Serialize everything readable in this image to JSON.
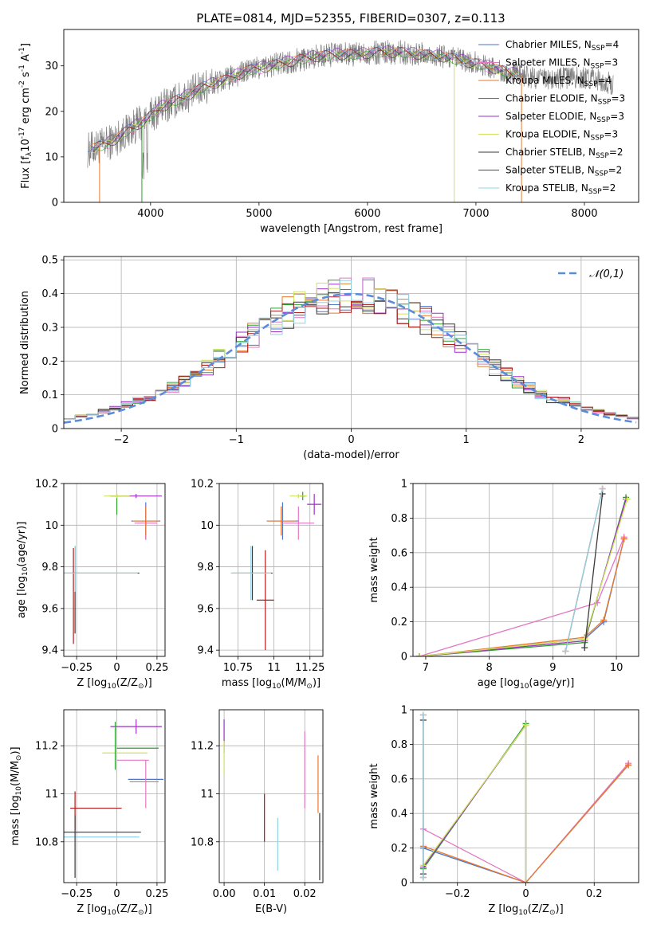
{
  "figure": {
    "title": "PLATE=0814, MJD=52355, FIBERID=0307, z=0.113"
  },
  "legend_items": [
    {
      "label": "Chabrier MILES, N$_{SSP}$=4",
      "color": "#4a76c8"
    },
    {
      "label": "Salpeter MILES, N$_{SSP}$=3",
      "color": "#e377c2"
    },
    {
      "label": "Kroupa MILES, N$_{SSP}$=4",
      "color": "#e9782c"
    },
    {
      "label": "Chabrier ELODIE, N$_{SSP}$=3",
      "color": "#2ca02c"
    },
    {
      "label": "Salpeter ELODIE, N$_{SSP}$=3",
      "color": "#9b30c5"
    },
    {
      "label": "Kroupa ELODIE, N$_{SSP}$=3",
      "color": "#cde35b"
    },
    {
      "label": "Chabrier STELIB, N$_{SSP}$=2",
      "color": "#3a3a3a"
    },
    {
      "label": "Salpeter STELIB, N$_{SSP}$=2",
      "color": "#b01b1b"
    },
    {
      "label": "Kroupa STELIB, N$_{SSP}$=2",
      "color": "#8fd4e4"
    }
  ],
  "chart_data": [
    {
      "type": "line",
      "title": "PLATE=0814, MJD=52355, FIBERID=0307, z=0.113",
      "xlabel": "wavelength [Angstrom, rest frame]",
      "ylabel": "Flux [f$_\\lambda$10$^{-17}$ erg cm$^{-2}$ s$^{-1}$ A$^{-1}$]",
      "xlim": [
        3200,
        8500
      ],
      "ylim": [
        0,
        38
      ],
      "xticks": [
        4000,
        5000,
        6000,
        7000,
        8000
      ],
      "yticks": [
        0,
        10,
        20,
        30
      ],
      "grid": false,
      "legend_position": "right",
      "data_spectrum_color": "#808080",
      "continuum_anchor": {
        "x": [
          3420,
          3550,
          3650,
          3800,
          3950,
          4100,
          4300,
          4500,
          4700,
          4900,
          5100,
          5300,
          5500,
          5700,
          5900,
          6100,
          6300,
          6500,
          6700,
          6900,
          7100,
          7300,
          7500,
          7700,
          7900,
          8100,
          8270
        ],
        "y": [
          11.5,
          12.5,
          13.5,
          16,
          18,
          21,
          23,
          25.5,
          27,
          29,
          30,
          31,
          32,
          32.5,
          32.5,
          33,
          33,
          32.5,
          32,
          31,
          30,
          28.5,
          27.5,
          27,
          27.5,
          27,
          26
        ]
      },
      "model_dropouts": [
        {
          "x": 3530,
          "series": "Kroupa MILES"
        },
        {
          "x": 3920,
          "series": "Chabrier ELODIE"
        },
        {
          "x": 6800,
          "series": "Kroupa ELODIE"
        },
        {
          "x": 7420,
          "series": "Kroupa MILES"
        }
      ]
    },
    {
      "type": "histogram",
      "xlabel": "(data-model)/error",
      "ylabel": "Normed distribution",
      "xlim": [
        -2.5,
        2.5
      ],
      "ylim": [
        0,
        0.51
      ],
      "xticks": [
        -2,
        -1,
        0,
        1,
        2
      ],
      "yticks": [
        0.0,
        0.1,
        0.2,
        0.3,
        0.4,
        0.5
      ],
      "grid": true,
      "bin_width": 0.1,
      "reference_curve": {
        "label": "$\\mathcal{N}(0,1)$",
        "color": "#5b8bd9",
        "style": "dashed",
        "mean": 0,
        "sigma": 1
      },
      "legend_position": "top-right"
    },
    {
      "type": "errorbar",
      "xlabel": "Z [log$_{10}$(Z/Z$_\\odot$)]",
      "ylabel": "age  [log$_{10}$(age/yr)]",
      "xlim": [
        -0.33,
        0.3
      ],
      "ylim": [
        9.37,
        10.2
      ],
      "xticks": [
        -0.25,
        0.0,
        0.25
      ],
      "yticks": [
        9.4,
        9.6,
        9.8,
        10.0,
        10.2
      ],
      "grid": true,
      "points": [
        {
          "series": "Chabrier MILES",
          "x": 0.18,
          "xerr": 0.09,
          "y": 10.02,
          "yerr": 0.09
        },
        {
          "series": "Salpeter MILES",
          "x": 0.18,
          "xerr": 0.07,
          "y": 10.01,
          "yerr": 0.08
        },
        {
          "series": "Kroupa MILES",
          "x": 0.18,
          "xerr": 0.08,
          "y": 10.02,
          "yerr": 0.07
        },
        {
          "series": "Chabrier ELODIE",
          "x": 0.0,
          "xerr": 0.0,
          "y": 10.1,
          "yerr": 0.05
        },
        {
          "series": "Salpeter ELODIE",
          "x": 0.12,
          "xerr": 0.16,
          "y": 10.14,
          "yerr": 0.01
        },
        {
          "series": "Kroupa ELODIE",
          "x": 0.0,
          "xerr": 0.08,
          "y": 10.14,
          "yerr": 0.01
        },
        {
          "series": "Chabrier STELIB",
          "x": -0.26,
          "xerr": 0.0,
          "y": 9.69,
          "yerr": 0.21
        },
        {
          "series": "Salpeter STELIB",
          "x": -0.27,
          "xerr": 0.0,
          "y": 9.66,
          "yerr": 0.23
        },
        {
          "series": "Kroupa STELIB",
          "x": -0.26,
          "xerr": 0.0,
          "y": 9.79,
          "yerr": 0.11
        },
        {
          "series": "Chabrier STELIB",
          "x": -0.1,
          "xerr": 0.24,
          "y": 9.77,
          "yerr": 0.0
        },
        {
          "series": "Kroupa STELIB",
          "x": -0.1,
          "xerr": 0.23,
          "y": 9.77,
          "yerr": 0.0
        }
      ]
    },
    {
      "type": "errorbar",
      "xlabel": "mass [log$_{10}$(M/M$_\\odot$)]",
      "ylabel": "",
      "xlim": [
        10.62,
        11.34
      ],
      "ylim": [
        9.37,
        10.2
      ],
      "xticks": [
        10.75,
        11.0,
        11.25
      ],
      "yticks": [
        9.4,
        9.6,
        9.8,
        10.0,
        10.2
      ],
      "grid": true,
      "points": [
        {
          "series": "Chabrier MILES",
          "x": 11.06,
          "xerr": 0.11,
          "y": 10.02,
          "yerr": 0.09
        },
        {
          "series": "Salpeter MILES",
          "x": 11.17,
          "xerr": 0.11,
          "y": 10.01,
          "yerr": 0.08
        },
        {
          "series": "Kroupa MILES",
          "x": 11.05,
          "xerr": 0.1,
          "y": 10.02,
          "yerr": 0.07
        },
        {
          "series": "Chabrier ELODIE",
          "x": 11.2,
          "xerr": 0.02,
          "y": 10.14,
          "yerr": 0.02
        },
        {
          "series": "Salpeter ELODIE",
          "x": 11.28,
          "xerr": 0.05,
          "y": 10.1,
          "yerr": 0.05
        },
        {
          "series": "Kroupa ELODIE",
          "x": 11.17,
          "xerr": 0.06,
          "y": 10.14,
          "yerr": 0.01
        },
        {
          "series": "Chabrier STELIB",
          "x": 10.85,
          "xerr": 0.14,
          "y": 9.77,
          "yerr": 0.13
        },
        {
          "series": "Salpeter STELIB",
          "x": 10.94,
          "xerr": 0.06,
          "y": 9.64,
          "yerr": 0.24
        },
        {
          "series": "Kroupa STELIB",
          "x": 10.84,
          "xerr": 0.14,
          "y": 9.77,
          "yerr": 0.13
        }
      ]
    },
    {
      "type": "line",
      "xlabel": "age  [log$_{10}$(age/yr)]",
      "ylabel": "mass weight",
      "xlim": [
        6.8,
        10.35
      ],
      "ylim": [
        0,
        1.0
      ],
      "xticks": [
        7,
        8,
        9,
        10
      ],
      "yticks": [
        0.0,
        0.2,
        0.4,
        0.6,
        0.8,
        1.0
      ],
      "grid": true,
      "series": [
        {
          "name": "Chabrier MILES",
          "x": [
            6.9,
            9.5,
            9.8,
            10.12
          ],
          "y": [
            0.0,
            0.1,
            0.2,
            0.68
          ]
        },
        {
          "name": "Salpeter MILES",
          "x": [
            6.9,
            9.7,
            10.12
          ],
          "y": [
            0.0,
            0.31,
            0.69
          ]
        },
        {
          "name": "Kroupa MILES",
          "x": [
            6.9,
            9.5,
            9.8,
            10.12
          ],
          "y": [
            0.0,
            0.11,
            0.21,
            0.68
          ]
        },
        {
          "name": "Chabrier ELODIE",
          "x": [
            6.9,
            9.5,
            10.15
          ],
          "y": [
            0.0,
            0.08,
            0.92
          ]
        },
        {
          "name": "Salpeter ELODIE",
          "x": [
            6.9,
            9.5,
            10.15
          ],
          "y": [
            0.0,
            0.09,
            0.91
          ]
        },
        {
          "name": "Kroupa ELODIE",
          "x": [
            6.9,
            9.5,
            10.17
          ],
          "y": [
            0.0,
            0.1,
            0.91
          ]
        },
        {
          "name": "Chabrier STELIB",
          "x": [
            9.5,
            9.78
          ],
          "y": [
            0.05,
            0.94
          ]
        },
        {
          "name": "Salpeter STELIB",
          "x": [
            9.2,
            9.78
          ],
          "y": [
            0.03,
            0.97
          ]
        },
        {
          "name": "Kroupa STELIB",
          "x": [
            9.2,
            9.78
          ],
          "y": [
            0.03,
            0.97
          ]
        }
      ]
    },
    {
      "type": "errorbar",
      "xlabel": "Z [log$_{10}$(Z/Z$_\\odot$)]",
      "ylabel": "mass [log$_{10}$(M/M$_\\odot$)]",
      "xlim": [
        -0.33,
        0.3
      ],
      "ylim": [
        10.63,
        11.35
      ],
      "xticks": [
        -0.25,
        0.0,
        0.25
      ],
      "yticks": [
        10.8,
        11.0,
        11.2
      ],
      "grid": true,
      "points": [
        {
          "series": "Salpeter ELODIE",
          "x": 0.12,
          "xerr": 0.16,
          "y": 11.28,
          "yerr": 0.03
        },
        {
          "series": "Chabrier ELODIE",
          "x": 0.13,
          "xerr": 0.13,
          "y": 11.19,
          "yerr": 0.0
        },
        {
          "series": "Kroupa ELODIE",
          "x": 0.05,
          "xerr": 0.14,
          "y": 11.17,
          "yerr": 0.0
        },
        {
          "series": "Chabrier ELODIE",
          "x": -0.01,
          "xerr": 0.0,
          "y": 11.2,
          "yerr": 0.1
        },
        {
          "series": "Salpeter MILES",
          "x": 0.1,
          "xerr": 0.1,
          "y": 11.14,
          "yerr": 0.0
        },
        {
          "series": "Chabrier MILES",
          "x": 0.18,
          "xerr": 0.11,
          "y": 11.06,
          "yerr": 0.0
        },
        {
          "series": "Kroupa MILES",
          "x": 0.17,
          "xerr": 0.09,
          "y": 11.05,
          "yerr": 0.0
        },
        {
          "series": "Salpeter MILES",
          "x": 0.18,
          "xerr": 0.0,
          "y": 11.04,
          "yerr": 0.1
        },
        {
          "series": "Salpeter STELIB",
          "x": -0.13,
          "xerr": 0.16,
          "y": 10.94,
          "yerr": 0.0
        },
        {
          "series": "Salpeter STELIB",
          "x": -0.26,
          "xerr": 0.0,
          "y": 10.93,
          "yerr": 0.08
        },
        {
          "series": "Chabrier STELIB",
          "x": -0.09,
          "xerr": 0.24,
          "y": 10.84,
          "yerr": 0.0
        },
        {
          "series": "Kroupa STELIB",
          "x": -0.11,
          "xerr": 0.25,
          "y": 10.82,
          "yerr": 0.0
        },
        {
          "series": "Chabrier STELIB",
          "x": -0.26,
          "xerr": 0.0,
          "y": 10.78,
          "yerr": 0.13
        }
      ]
    },
    {
      "type": "errorbar",
      "xlabel": "E(B-V)",
      "ylabel": "",
      "xlim": [
        -0.0012,
        0.0245
      ],
      "ylim": [
        10.63,
        11.35
      ],
      "xticks": [
        0.0,
        0.01,
        0.02
      ],
      "xtick_labels": [
        "0.00",
        "0.01",
        "0.02"
      ],
      "yticks": [
        10.8,
        11.0,
        11.2
      ],
      "grid": true,
      "points": [
        {
          "series": "Salpeter ELODIE",
          "x": 0.0,
          "xerr": 0.0,
          "y": 11.24,
          "yerr": 0.07
        },
        {
          "series": "Kroupa ELODIE",
          "x": 0.0,
          "xerr": 0.0,
          "y": 11.15,
          "yerr": 0.07
        },
        {
          "series": "Salpeter STELIB",
          "x": 0.01,
          "xerr": 0.0,
          "y": 10.9,
          "yerr": 0.1
        },
        {
          "series": "Kroupa STELIB",
          "x": 0.0133,
          "xerr": 0.0,
          "y": 10.79,
          "yerr": 0.11
        },
        {
          "series": "Salpeter MILES",
          "x": 0.02,
          "xerr": 0.0,
          "y": 11.1,
          "yerr": 0.16
        },
        {
          "series": "Kroupa MILES",
          "x": 0.0233,
          "xerr": 0.0,
          "y": 11.04,
          "yerr": 0.12
        },
        {
          "series": "Chabrier STELIB",
          "x": 0.0237,
          "xerr": 0.0,
          "y": 10.78,
          "yerr": 0.14
        }
      ]
    },
    {
      "type": "line",
      "xlabel": "Z [log$_{10}$(Z/Z$_\\odot$)]",
      "ylabel": "mass weight",
      "xlim": [
        -0.33,
        0.33
      ],
      "ylim": [
        0,
        1.0
      ],
      "xticks": [
        -0.2,
        0.0,
        0.2
      ],
      "yticks": [
        0.0,
        0.2,
        0.4,
        0.6,
        0.8,
        1.0
      ],
      "grid": true,
      "series": [
        {
          "name": "Chabrier MILES",
          "x": [
            -0.3,
            0.0,
            0.3
          ],
          "y": [
            0.2,
            0.0,
            0.68
          ]
        },
        {
          "name": "Salpeter MILES",
          "x": [
            -0.3,
            0.0,
            0.3
          ],
          "y": [
            0.31,
            0.0,
            0.69
          ]
        },
        {
          "name": "Kroupa MILES",
          "x": [
            -0.3,
            0.0,
            0.3
          ],
          "y": [
            0.21,
            0.0,
            0.68
          ]
        },
        {
          "name": "Chabrier ELODIE",
          "x": [
            -0.3,
            0.0,
            0.0
          ],
          "y": [
            0.08,
            0.92,
            0.0
          ]
        },
        {
          "name": "Salpeter ELODIE",
          "x": [
            -0.3,
            0.0,
            0.0
          ],
          "y": [
            0.09,
            0.91,
            0.0
          ]
        },
        {
          "name": "Kroupa ELODIE",
          "x": [
            -0.3,
            0.0,
            0.0
          ],
          "y": [
            0.1,
            0.91,
            0.0
          ]
        },
        {
          "name": "Chabrier STELIB",
          "x": [
            -0.3,
            -0.3
          ],
          "y": [
            0.05,
            0.94
          ]
        },
        {
          "name": "Salpeter STELIB",
          "x": [
            -0.3,
            -0.3
          ],
          "y": [
            0.03,
            0.97
          ]
        },
        {
          "name": "Kroupa STELIB",
          "x": [
            -0.3,
            -0.3
          ],
          "y": [
            0.03,
            0.97
          ]
        }
      ]
    }
  ]
}
